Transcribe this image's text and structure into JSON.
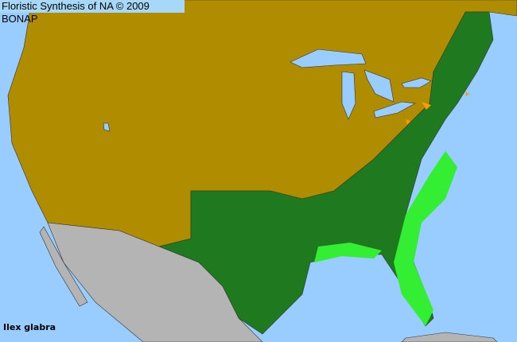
{
  "title": "Floristic Synthesis of NA © 2009 BONAP",
  "species": "Ilex glabra",
  "colors": {
    "ocean": "#99ccff",
    "not_present": "#b08c00",
    "present_state": "#1f7a1f",
    "present_county": "#33ee33",
    "rare": "#ff9900",
    "outside_range": "#b4b4b4"
  }
}
